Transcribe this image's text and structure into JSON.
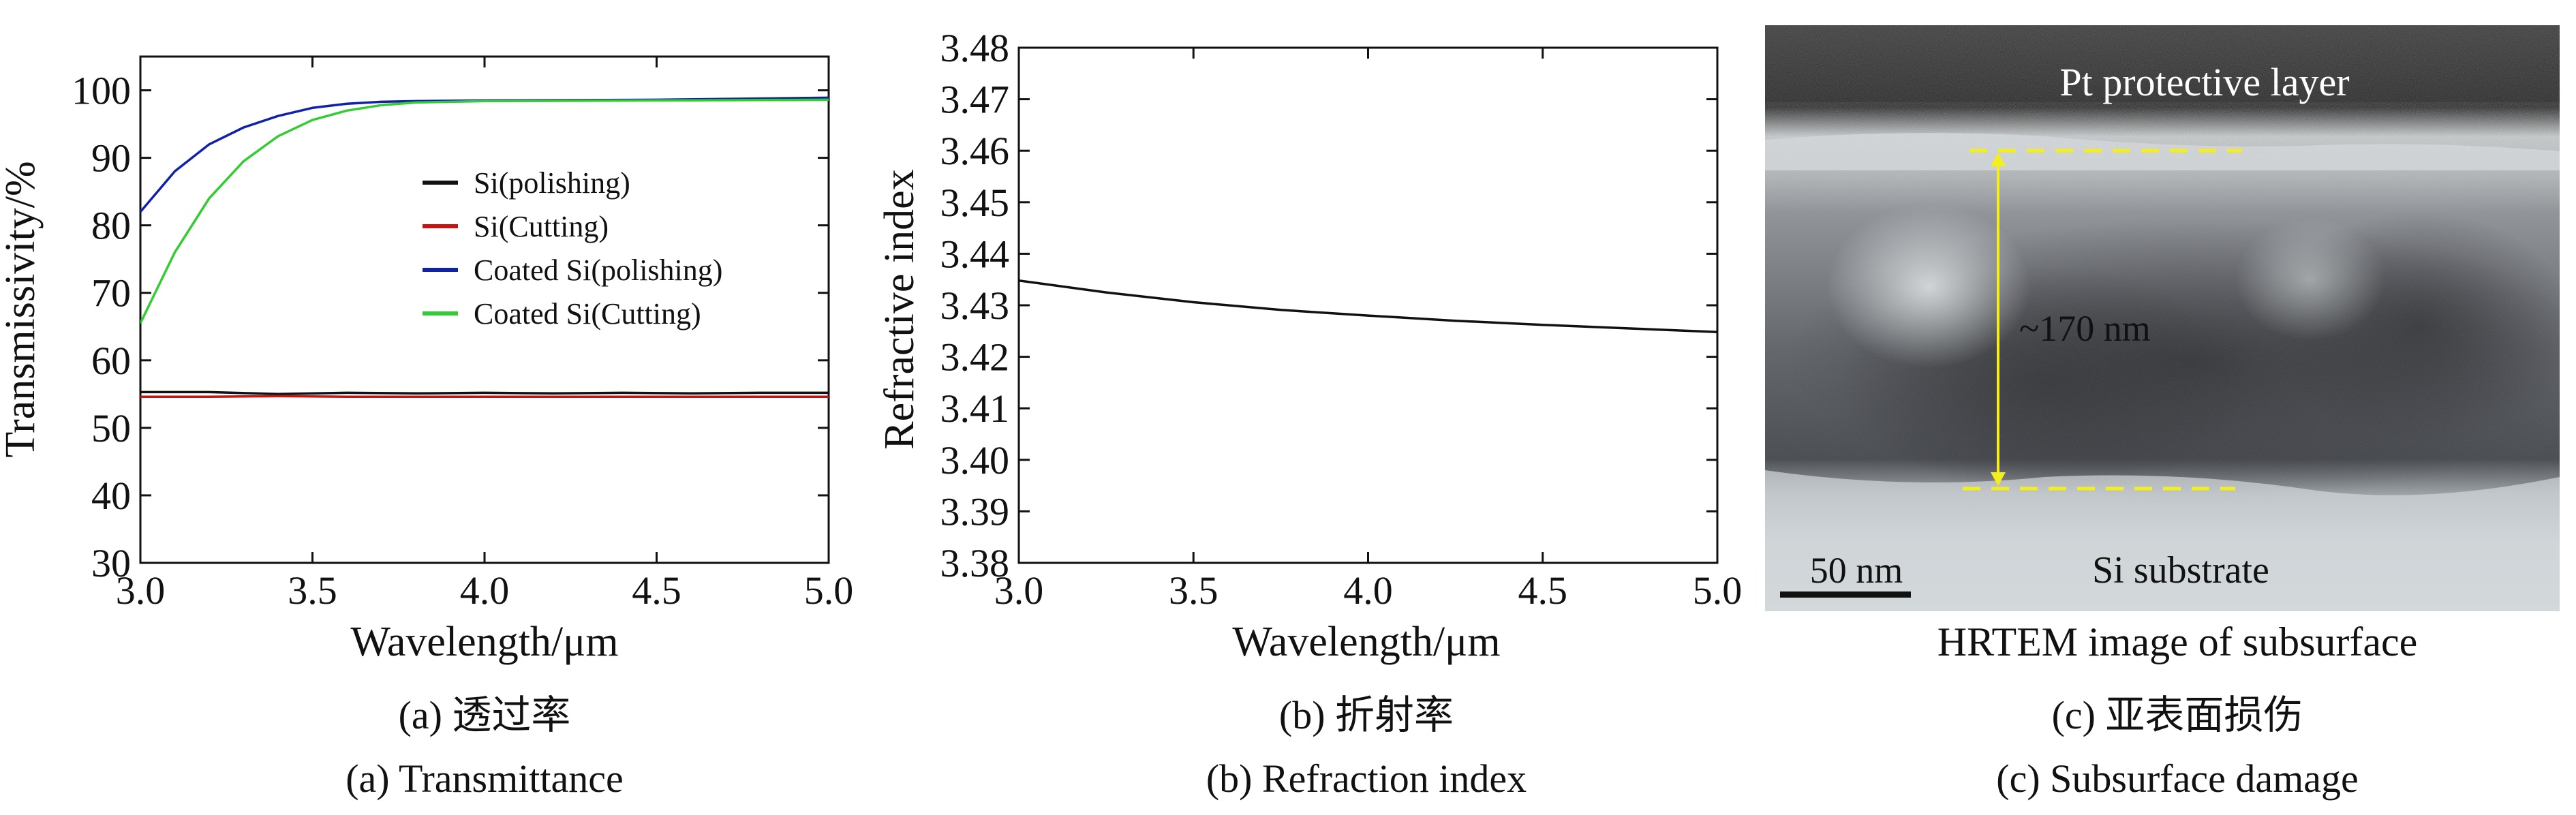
{
  "chart_data": [
    {
      "type": "line",
      "panel": "a",
      "xlabel": "Wavelength/μm",
      "ylabel": "Transmissivity/%",
      "xlim": [
        3.0,
        5.0
      ],
      "ylim": [
        30,
        105
      ],
      "xticks": [
        "3.0",
        "3.5",
        "4.0",
        "4.5",
        "5.0"
      ],
      "yticks": [
        "30",
        "40",
        "50",
        "60",
        "70",
        "80",
        "90",
        "100"
      ],
      "legend_position": "center-right",
      "series": [
        {
          "name": "Si(polishing)",
          "color": "#111111",
          "x": [
            3.0,
            3.2,
            3.4,
            3.6,
            3.8,
            4.0,
            4.2,
            4.4,
            4.6,
            4.8,
            5.0
          ],
          "y": [
            55.3,
            55.3,
            55.0,
            55.2,
            55.1,
            55.2,
            55.1,
            55.2,
            55.1,
            55.2,
            55.2
          ]
        },
        {
          "name": "Si(Cutting)",
          "color": "#cc1111",
          "x": [
            3.0,
            3.2,
            3.4,
            3.6,
            3.8,
            4.0,
            4.2,
            4.4,
            4.6,
            4.8,
            5.0
          ],
          "y": [
            54.6,
            54.6,
            54.7,
            54.6,
            54.6,
            54.6,
            54.6,
            54.6,
            54.6,
            54.6,
            54.6
          ]
        },
        {
          "name": "Coated Si(polishing)",
          "color": "#1122aa",
          "x": [
            3.0,
            3.1,
            3.2,
            3.3,
            3.4,
            3.5,
            3.6,
            3.7,
            3.8,
            4.0,
            4.5,
            5.0
          ],
          "y": [
            82,
            88,
            92,
            94.5,
            96.2,
            97.4,
            98.0,
            98.3,
            98.4,
            98.5,
            98.6,
            98.9
          ]
        },
        {
          "name": "Coated Si(Cutting)",
          "color": "#33cc33",
          "x": [
            3.0,
            3.1,
            3.2,
            3.3,
            3.4,
            3.5,
            3.6,
            3.7,
            3.8,
            4.0,
            4.5,
            5.0
          ],
          "y": [
            65.5,
            76,
            84,
            89.5,
            93.2,
            95.6,
            97.0,
            97.8,
            98.2,
            98.4,
            98.5,
            98.6
          ]
        }
      ]
    },
    {
      "type": "line",
      "panel": "b",
      "xlabel": "Wavelength/μm",
      "ylabel": "Refractive index",
      "xlim": [
        3.0,
        5.0
      ],
      "ylim": [
        3.38,
        3.48
      ],
      "xticks": [
        "3.0",
        "3.5",
        "4.0",
        "4.5",
        "5.0"
      ],
      "yticks": [
        "3.38",
        "3.39",
        "3.40",
        "3.41",
        "3.42",
        "3.43",
        "3.44",
        "3.45",
        "3.46",
        "3.47",
        "3.48"
      ],
      "series": [
        {
          "name": "Refractive index",
          "color": "#111111",
          "x": [
            3.0,
            3.25,
            3.5,
            3.75,
            4.0,
            4.25,
            4.5,
            4.75,
            5.0
          ],
          "y": [
            3.4348,
            3.4325,
            3.4306,
            3.4291,
            3.428,
            3.427,
            3.4262,
            3.4255,
            3.4248
          ]
        }
      ]
    }
  ],
  "tem": {
    "pt_label": "Pt protective layer",
    "thickness_label": "~170 nm",
    "scale_label": "50 nm",
    "substrate_label": "Si substrate",
    "title": "HRTEM image of subsurface",
    "marker_color": "#f4ef1a"
  },
  "captions": {
    "a_cn": "(a) 透过率",
    "a_en": "(a) Transmittance",
    "b_cn": "(b) 折射率",
    "b_en": "(b) Refraction index",
    "c_cn": "(c) 亚表面损伤",
    "c_en": "(c) Subsurface damage"
  }
}
